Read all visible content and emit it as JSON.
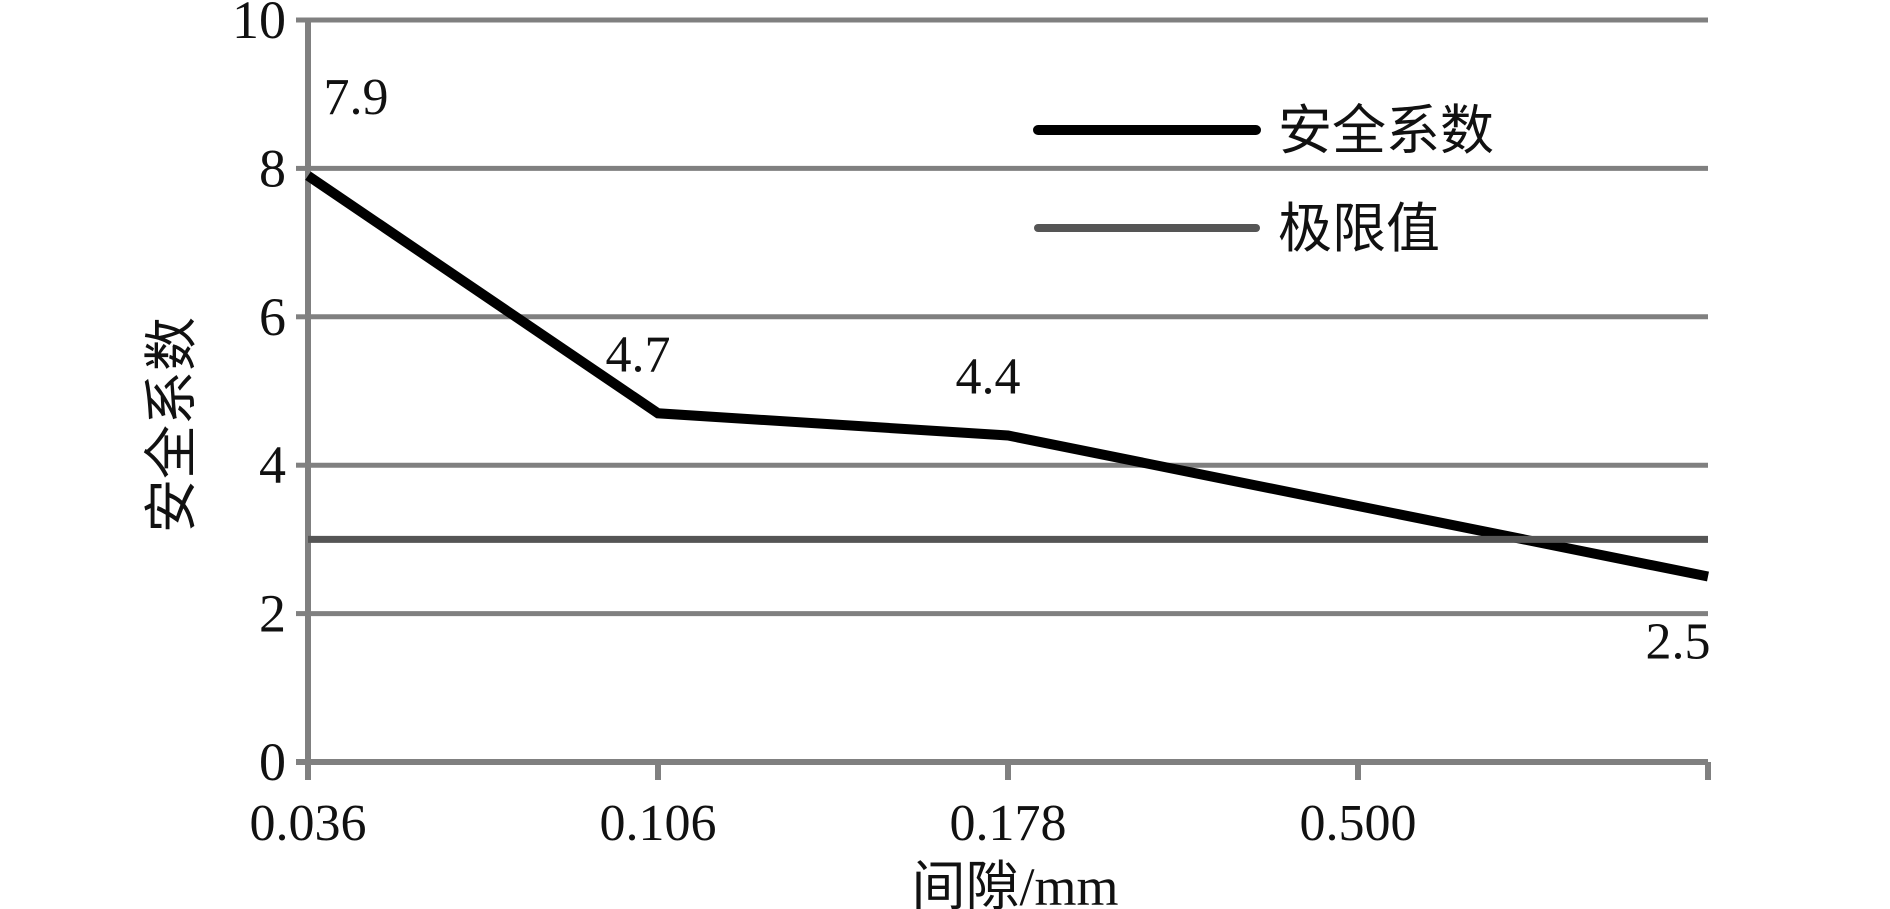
{
  "chart_data": {
    "type": "line",
    "x": [
      "0.036",
      "0.106",
      "0.178",
      "0.500",
      ""
    ],
    "ylim": [
      0,
      10
    ],
    "yticks": [
      "0",
      "2",
      "4",
      "6",
      "8",
      "10"
    ],
    "xlabel": "间隙/mm",
    "ylabel": "安全系数",
    "grid": true,
    "legend_position": "top-right",
    "series": [
      {
        "name": "安全系数",
        "values": [
          7.9,
          4.7,
          4.4,
          null,
          2.5
        ],
        "labels": [
          "7.9",
          "4.7",
          "4.4",
          "",
          "2.5"
        ],
        "color": "#000000"
      },
      {
        "name": "极限值",
        "values": [
          3,
          3,
          3,
          3,
          3
        ],
        "color": "#555555"
      }
    ]
  },
  "colors": {
    "grid": "#808080",
    "axis": "#808080",
    "limit": "#555555",
    "safety": "#000000"
  }
}
